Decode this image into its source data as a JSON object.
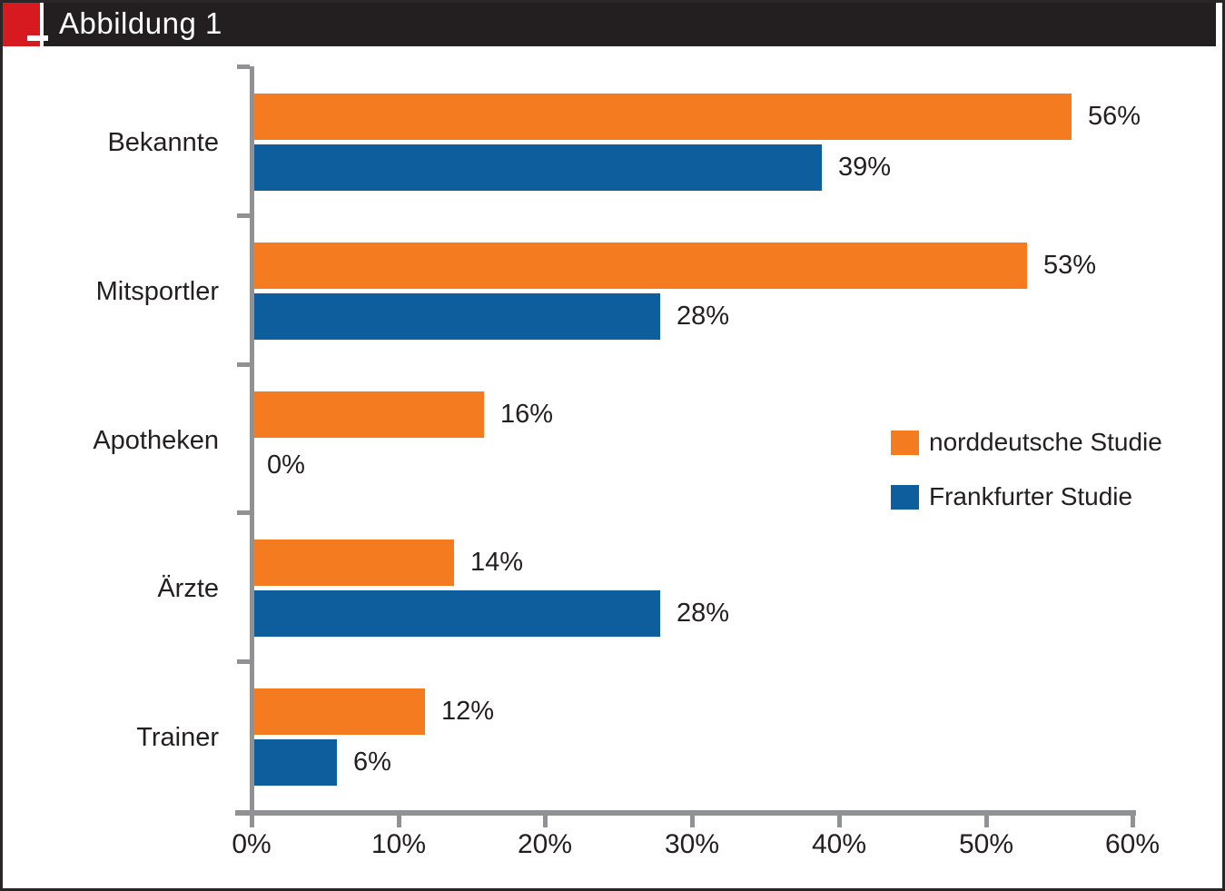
{
  "header": {
    "title": "Abbildung 1"
  },
  "colors": {
    "header_bar": "#231f20",
    "logo_red": "#d71920",
    "series_orange": "#f47b20",
    "series_blue": "#0e5d9c",
    "axis_gray": "#8f9194",
    "text": "#231f20"
  },
  "chart_data": {
    "type": "bar",
    "orientation": "horizontal",
    "title": "Abbildung 1",
    "categories": [
      "Bekannte",
      "Mitsportler",
      "Apotheken",
      "Ärzte",
      "Trainer"
    ],
    "series": [
      {
        "name": "norddeutsche Studie",
        "color": "#f47b20",
        "values": [
          56,
          53,
          16,
          14,
          12
        ]
      },
      {
        "name": "Frankfurter Studie",
        "color": "#0e5d9c",
        "values": [
          39,
          28,
          0,
          28,
          6
        ]
      }
    ],
    "value_labels": [
      [
        "56%",
        "39%"
      ],
      [
        "53%",
        "28%"
      ],
      [
        "16%",
        "0%"
      ],
      [
        "14%",
        "28%"
      ],
      [
        "12%",
        "6%"
      ]
    ],
    "x_ticks": [
      "0%",
      "10%",
      "20%",
      "30%",
      "40%",
      "50%",
      "60%"
    ],
    "xlim": [
      0,
      60
    ],
    "xlabel": "",
    "ylabel": "",
    "grid": false,
    "legend_position": "middle-right"
  }
}
